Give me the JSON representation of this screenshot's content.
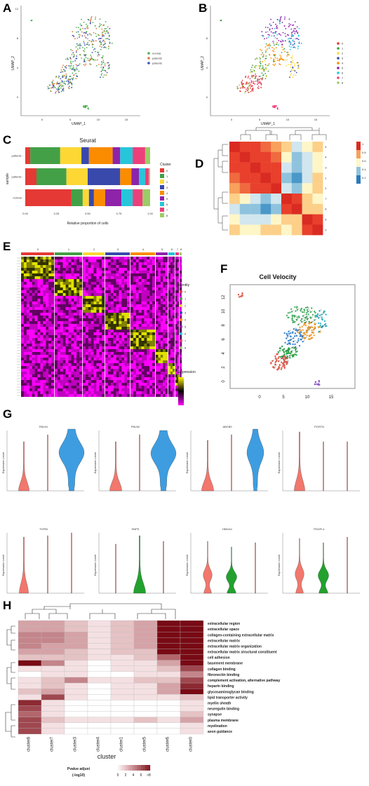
{
  "panels": {
    "a": {
      "letter": "A",
      "xlabel": "UMAP_1",
      "ylabel": "UMAP_2",
      "xticks": [
        "0",
        "5",
        "10",
        "15"
      ],
      "yticks": [
        "0",
        "4",
        "8",
        "12"
      ],
      "legend": [
        {
          "label": "normal",
          "color": "#4caf50"
        },
        {
          "label": "patients",
          "color": "#e07a3c"
        },
        {
          "label": "patients",
          "color": "#3f51b5"
        }
      ]
    },
    "b": {
      "letter": "B",
      "xlabel": "UMAP_1",
      "ylabel": "UMAP_2",
      "xticks": [
        "0",
        "5",
        "10",
        "15"
      ],
      "yticks": [
        "0",
        "4",
        "8",
        "12"
      ],
      "legend": [
        {
          "label": "0",
          "color": "#e53935"
        },
        {
          "label": "1",
          "color": "#43a047"
        },
        {
          "label": "2",
          "color": "#fdd835"
        },
        {
          "label": "3",
          "color": "#3949ab"
        },
        {
          "label": "4",
          "color": "#fb8c00"
        },
        {
          "label": "5",
          "color": "#8e24aa"
        },
        {
          "label": "6",
          "color": "#26c6da"
        },
        {
          "label": "7",
          "color": "#ec407a"
        },
        {
          "label": "8",
          "color": "#9ccc65"
        }
      ]
    },
    "c": {
      "letter": "C",
      "title": "Seurat",
      "ylabel": "sample",
      "xlabel": "Relative proportion of cells",
      "legend_title": "Cluster",
      "xticks": [
        "0.00",
        "0.25",
        "0.50",
        "0.75",
        "1.00"
      ]
    },
    "d": {
      "letter": "D",
      "scale": [
        "1",
        "0.8",
        "0.6",
        "0.4",
        "0.2"
      ],
      "row_labels": [
        "5",
        "4",
        "3",
        "1",
        "2",
        "7",
        "8",
        "6",
        "0"
      ]
    },
    "e": {
      "letter": "E",
      "identity_title": "Identity",
      "expr_title": "Expression",
      "clusters": [
        "0",
        "1",
        "2",
        "3",
        "4",
        "5",
        "6",
        "7",
        "8"
      ],
      "identity_legend": [
        "0",
        "1",
        "2",
        "3",
        "4",
        "5",
        "6",
        "7",
        "8"
      ]
    },
    "f": {
      "letter": "F",
      "title": "Cell Velocity",
      "xticks": [
        "0",
        "5",
        "10",
        "15"
      ],
      "yticks": [
        "0",
        "2",
        "4",
        "6",
        "8",
        "10",
        "12"
      ]
    },
    "g": {
      "letter": "G",
      "ylabel": "Expression Level",
      "row1": [
        "FBLN1",
        "FBLN2",
        "ABCB9",
        "POSTN"
      ],
      "row2": [
        "TGFBI",
        "SNPS",
        "HMGA1",
        "PDGFL1"
      ]
    },
    "h": {
      "letter": "H",
      "xlabel": "cluster",
      "legend_title": "Pvalue adjust",
      "legend_sub": "(-log10)",
      "legend_ticks": [
        "0",
        "2",
        "4",
        "6",
        ">8"
      ],
      "columns": [
        "cluster8",
        "cluster7",
        "cluster3",
        "cluster4",
        "cluster1",
        "cluster5",
        "cluster6",
        "cluster0"
      ],
      "rows": [
        "extracellular region",
        "extracellular space",
        "collagen-containing extracellular matrix",
        "extracellular matrix",
        "extracellular matrix organization",
        "extracellular matrix structural constituent",
        "cell adhesion",
        "basement membrane",
        "collagen binding",
        "fibronectin binding",
        "complement activation, alternative pathway",
        "heparin binding",
        "glycosaminoglycan binding",
        "lipid transporter activity",
        "myelin sheath",
        "neuregulin binding",
        "synapse",
        "plasma membrane",
        "myelination",
        "axon guidance"
      ]
    }
  },
  "chart_data": [
    {
      "type": "bar",
      "title": "Seurat",
      "ylabel": "sample",
      "xlabel": "Relative proportion of cells",
      "categories": [
        "normal",
        "patients",
        "patients"
      ],
      "series": [
        {
          "name": "0",
          "color": "#e53935",
          "values": [
            0.37,
            0.09,
            0.04
          ]
        },
        {
          "name": "1",
          "color": "#43a047",
          "values": [
            0.09,
            0.24,
            0.24
          ]
        },
        {
          "name": "2",
          "color": "#fdd835",
          "values": [
            0.05,
            0.17,
            0.17
          ]
        },
        {
          "name": "3",
          "color": "#3949ab",
          "values": [
            0.04,
            0.26,
            0.06
          ]
        },
        {
          "name": "4",
          "color": "#fb8c00",
          "values": [
            0.09,
            0.09,
            0.19
          ]
        },
        {
          "name": "5",
          "color": "#8e24aa",
          "values": [
            0.13,
            0.06,
            0.06
          ]
        },
        {
          "name": "6",
          "color": "#26c6da",
          "values": [
            0.09,
            0.05,
            0.1
          ]
        },
        {
          "name": "7",
          "color": "#ec407a",
          "values": [
            0.08,
            0.03,
            0.1
          ]
        },
        {
          "name": "8",
          "color": "#9ccc65",
          "values": [
            0.06,
            0.01,
            0.04
          ]
        }
      ],
      "xlim": [
        0,
        1
      ]
    },
    {
      "type": "heatmap",
      "xlabel": "cluster",
      "legend_title": "Pvalue adjust (-log10)",
      "categories": [
        "cluster8",
        "cluster7",
        "cluster3",
        "cluster4",
        "cluster1",
        "cluster5",
        "cluster6",
        "cluster0"
      ],
      "rows": [
        "extracellular region",
        "extracellular space",
        "collagen-containing extracellular matrix",
        "extracellular matrix",
        "extracellular matrix organization",
        "extracellular matrix structural constituent",
        "cell adhesion",
        "basement membrane",
        "collagen binding",
        "fibronectin binding",
        "complement activation, alternative pathway",
        "heparin binding",
        "glycosaminoglycan binding",
        "lipid transporter activity",
        "myelin sheath",
        "neuregulin binding",
        "synapse",
        "plasma membrane",
        "myelination",
        "axon guidance"
      ],
      "values": [
        [
          3,
          3,
          2,
          1,
          2,
          3,
          8,
          9
        ],
        [
          3,
          3,
          2,
          1,
          2,
          3,
          8,
          9
        ],
        [
          4,
          4,
          3,
          1,
          2,
          3,
          9,
          9
        ],
        [
          4,
          4,
          3,
          1,
          2,
          3,
          9,
          9
        ],
        [
          4,
          3,
          3,
          1,
          2,
          3,
          8,
          9
        ],
        [
          3,
          3,
          2,
          1,
          2,
          2,
          8,
          9
        ],
        [
          2,
          2,
          2,
          1,
          1,
          2,
          5,
          8
        ],
        [
          8,
          4,
          1,
          0,
          1,
          1,
          3,
          9
        ],
        [
          1,
          1,
          1,
          0,
          1,
          1,
          2,
          6
        ],
        [
          0,
          1,
          1,
          0,
          0,
          1,
          1,
          4
        ],
        [
          1,
          2,
          4,
          1,
          1,
          2,
          2,
          6
        ],
        [
          1,
          2,
          1,
          0,
          1,
          1,
          3,
          7
        ],
        [
          2,
          3,
          1,
          0,
          1,
          1,
          3,
          8
        ],
        [
          1,
          6,
          1,
          0,
          1,
          1,
          1,
          2
        ],
        [
          7,
          1,
          0,
          0,
          0,
          0,
          0,
          1
        ],
        [
          6,
          1,
          0,
          0,
          0,
          0,
          0,
          1
        ],
        [
          5,
          1,
          0,
          0,
          0,
          0,
          0,
          2
        ],
        [
          6,
          2,
          1,
          1,
          1,
          2,
          1,
          3
        ],
        [
          6,
          1,
          0,
          0,
          0,
          0,
          0,
          1
        ],
        [
          6,
          1,
          0,
          0,
          0,
          0,
          0,
          1
        ]
      ],
      "range": [
        0,
        8
      ]
    }
  ]
}
